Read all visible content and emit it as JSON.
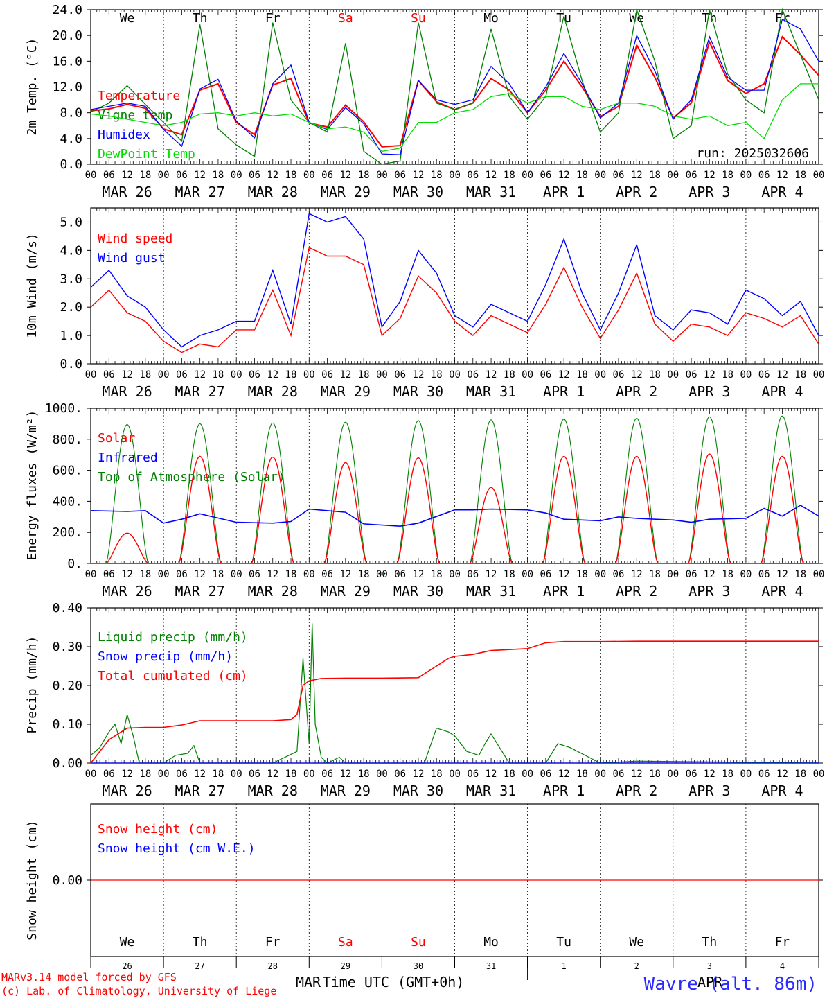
{
  "colors": {
    "red": "#ff0000",
    "blue": "#0000ff",
    "green": "#008000",
    "lightgreen": "#00dd00",
    "axis": "#000000",
    "station": "#2a2aff"
  },
  "x_axis": {
    "hour_ticks": [
      "00",
      "06",
      "12",
      "18"
    ],
    "final_tick": "00",
    "date_labels": [
      "MAR 26",
      "MAR 27",
      "MAR 28",
      "MAR 29",
      "MAR 30",
      "MAR 31",
      "APR  1",
      "APR  2",
      "APR  3",
      "APR  4"
    ],
    "weekdays": [
      "We",
      "Th",
      "Fr",
      "Sa",
      "Su",
      "Mo",
      "Tu",
      "We",
      "Th",
      "Fr"
    ],
    "weekend_flags": [
      false,
      false,
      false,
      true,
      true,
      false,
      false,
      false,
      false,
      false
    ],
    "day_numbers": [
      "26",
      "27",
      "28",
      "29",
      "30",
      "31",
      "1",
      "2",
      "3",
      "4"
    ],
    "month_left": "MAR",
    "month_right": "APR"
  },
  "footer": {
    "model_line1": "MARv3.14 model forced by GFS",
    "model_line2": "(c) Lab. of Climatology, University of Liege",
    "axis_title": "Time UTC (GMT+0h)",
    "station": "Wavre (alt. 86m)"
  },
  "chart_data": [
    {
      "type": "line",
      "ylabel": "2m Temp. (°C)",
      "yticks": [
        "0.0",
        "4.0",
        "8.0",
        "12.0",
        "16.0",
        "20.0",
        "24.0"
      ],
      "ylim": [
        0,
        24
      ],
      "run_label": "run: 2025032606",
      "x_unit": "hours since MAR 26 00 UTC",
      "series": [
        {
          "name": "Temperature",
          "color": "red",
          "x": [
            0,
            6,
            12,
            18,
            24,
            30,
            36,
            42,
            48,
            54,
            60,
            66,
            72,
            78,
            84,
            90,
            96,
            102,
            108,
            114,
            120,
            126,
            132,
            138,
            144,
            150,
            156,
            162,
            168,
            174,
            180,
            186,
            192,
            198,
            204,
            210,
            216,
            222,
            228,
            234,
            240
          ],
          "y": [
            8.3,
            8.6,
            9.3,
            8.7,
            5.5,
            4.6,
            11.5,
            12.5,
            6.5,
            4.6,
            12.3,
            13.3,
            6.4,
            5.8,
            9.2,
            6.6,
            2.7,
            2.9,
            13.0,
            9.7,
            8.5,
            9.5,
            13.3,
            11.5,
            8.0,
            11.5,
            16.0,
            12.0,
            7.4,
            9.0,
            18.5,
            13.5,
            7.2,
            9.5,
            19.0,
            13.0,
            11.0,
            12.5,
            19.8,
            17.0,
            13.8
          ]
        },
        {
          "name": "Vigne temp",
          "color": "green",
          "x": [
            0,
            6,
            12,
            18,
            24,
            30,
            36,
            42,
            48,
            54,
            60,
            66,
            72,
            78,
            84,
            90,
            96,
            102,
            108,
            114,
            120,
            126,
            132,
            138,
            144,
            150,
            156,
            162,
            168,
            174,
            180,
            186,
            192,
            198,
            204,
            210,
            216,
            222,
            228,
            234,
            240
          ],
          "y": [
            8.1,
            9.5,
            12.2,
            9.3,
            6.5,
            3.6,
            21.7,
            5.5,
            3.0,
            1.2,
            22.0,
            10.0,
            6.5,
            5.0,
            18.8,
            2.0,
            0.0,
            0.5,
            22.0,
            9.5,
            8.5,
            9.5,
            21.0,
            10.5,
            7.0,
            10.5,
            23.0,
            13.0,
            5.0,
            8.0,
            24.0,
            16.0,
            4.0,
            6.0,
            24.0,
            14.0,
            10.0,
            8.0,
            24.0,
            17.0,
            10.0
          ]
        },
        {
          "name": "Humidex",
          "color": "blue",
          "x": [
            0,
            6,
            12,
            18,
            24,
            30,
            36,
            42,
            48,
            54,
            60,
            66,
            72,
            78,
            84,
            90,
            96,
            102,
            108,
            114,
            120,
            126,
            132,
            138,
            144,
            150,
            156,
            162,
            168,
            174,
            180,
            186,
            192,
            198,
            204,
            210,
            216,
            222,
            228,
            234,
            240
          ],
          "y": [
            8.5,
            9.0,
            9.5,
            9.0,
            5.4,
            2.8,
            11.7,
            13.2,
            6.7,
            4.1,
            12.5,
            15.4,
            6.5,
            5.4,
            8.8,
            6.3,
            1.6,
            1.5,
            13.0,
            10.0,
            9.3,
            10.0,
            15.2,
            12.5,
            8.0,
            12.0,
            17.2,
            12.5,
            7.2,
            9.5,
            20.0,
            14.5,
            7.0,
            10.0,
            19.8,
            13.5,
            11.5,
            11.5,
            22.5,
            21.0,
            16.0
          ]
        },
        {
          "name": "DewPoint Temp",
          "color": "lightgreen",
          "x": [
            0,
            6,
            12,
            18,
            24,
            30,
            36,
            42,
            48,
            54,
            60,
            66,
            72,
            78,
            84,
            90,
            96,
            102,
            108,
            114,
            120,
            126,
            132,
            138,
            144,
            150,
            156,
            162,
            168,
            174,
            180,
            186,
            192,
            198,
            204,
            210,
            216,
            222,
            228,
            234,
            240
          ],
          "y": [
            7.8,
            7.5,
            7.0,
            6.5,
            6.0,
            6.5,
            7.8,
            8.0,
            7.5,
            8.0,
            7.5,
            7.8,
            6.5,
            5.5,
            5.8,
            5.0,
            2.0,
            2.5,
            6.5,
            6.5,
            8.0,
            8.5,
            10.5,
            11.0,
            9.5,
            10.5,
            10.5,
            9.0,
            8.5,
            9.5,
            9.5,
            9.0,
            7.5,
            7.0,
            7.5,
            6.0,
            6.5,
            4.0,
            10.0,
            12.5,
            12.5
          ]
        }
      ]
    },
    {
      "type": "line",
      "ylabel": "10m Wind (m/s)",
      "yticks": [
        "0.0",
        "1.0",
        "2.0",
        "3.0",
        "4.0",
        "5.0"
      ],
      "ylim": [
        0,
        5.5
      ],
      "ref_line": 5.0,
      "series": [
        {
          "name": "Wind speed",
          "color": "red",
          "x": [
            0,
            6,
            12,
            18,
            24,
            30,
            36,
            42,
            48,
            54,
            60,
            66,
            72,
            78,
            84,
            90,
            96,
            102,
            108,
            114,
            120,
            126,
            132,
            138,
            144,
            150,
            156,
            162,
            168,
            174,
            180,
            186,
            192,
            198,
            204,
            210,
            216,
            222,
            228,
            234,
            240
          ],
          "y": [
            2.0,
            2.6,
            1.8,
            1.5,
            0.8,
            0.4,
            0.7,
            0.6,
            1.2,
            1.2,
            2.6,
            1.0,
            4.1,
            3.8,
            3.8,
            3.5,
            1.0,
            1.6,
            3.1,
            2.5,
            1.5,
            1.0,
            1.7,
            1.4,
            1.1,
            2.1,
            3.4,
            2.0,
            0.9,
            1.9,
            3.2,
            1.4,
            0.8,
            1.4,
            1.3,
            1.0,
            1.8,
            1.6,
            1.3,
            1.7,
            0.7
          ]
        },
        {
          "name": "Wind gust",
          "color": "blue",
          "x": [
            0,
            6,
            12,
            18,
            24,
            30,
            36,
            42,
            48,
            54,
            60,
            66,
            72,
            78,
            84,
            90,
            96,
            102,
            108,
            114,
            120,
            126,
            132,
            138,
            144,
            150,
            156,
            162,
            168,
            174,
            180,
            186,
            192,
            198,
            204,
            210,
            216,
            222,
            228,
            234,
            240
          ],
          "y": [
            2.7,
            3.3,
            2.4,
            2.0,
            1.2,
            0.6,
            1.0,
            1.2,
            1.5,
            1.5,
            3.3,
            1.4,
            5.3,
            5.0,
            5.2,
            4.4,
            1.3,
            2.2,
            4.0,
            3.2,
            1.7,
            1.3,
            2.1,
            1.8,
            1.5,
            2.8,
            4.4,
            2.5,
            1.2,
            2.5,
            4.2,
            1.7,
            1.2,
            1.9,
            1.8,
            1.4,
            2.6,
            2.3,
            1.7,
            2.2,
            1.0
          ]
        }
      ]
    },
    {
      "type": "line",
      "ylabel": "Energy fluxes (W/m²)",
      "yticks": [
        "0.",
        "200.",
        "400.",
        "600.",
        "800.",
        "1000."
      ],
      "ylim": [
        0,
        1000
      ],
      "daylight": {
        "rise_hour": 5,
        "set_hour": 19,
        "peak_hour": 12
      },
      "series": [
        {
          "name": "Solar",
          "color": "red",
          "daily_peak": [
            195,
            690,
            685,
            650,
            680,
            490,
            690,
            690,
            705,
            690
          ]
        },
        {
          "name": "Infrared",
          "color": "blue",
          "x": [
            0,
            12,
            18,
            24,
            30,
            36,
            48,
            60,
            66,
            72,
            84,
            90,
            102,
            108,
            120,
            126,
            132,
            144,
            150,
            156,
            168,
            174,
            180,
            192,
            198,
            204,
            216,
            222,
            228,
            234,
            240
          ],
          "y": [
            340,
            335,
            340,
            260,
            285,
            320,
            265,
            260,
            270,
            350,
            330,
            255,
            240,
            260,
            345,
            345,
            350,
            345,
            325,
            285,
            275,
            300,
            290,
            280,
            265,
            285,
            290,
            355,
            305,
            375,
            305
          ]
        },
        {
          "name": "Top of Atmosphere (Solar)",
          "color": "green",
          "daily_peak": [
            895,
            900,
            905,
            910,
            920,
            925,
            930,
            935,
            945,
            950
          ]
        }
      ]
    },
    {
      "type": "line",
      "ylabel": "Precip (mm/h)",
      "yticks": [
        "0.00",
        "0.10",
        "0.20",
        "0.30",
        "0.40"
      ],
      "ylim": [
        0,
        0.4
      ],
      "series": [
        {
          "name": "Liquid precip (mm/h)",
          "color": "green",
          "x": [
            0,
            3,
            6,
            8,
            10,
            12,
            14,
            16,
            24,
            28,
            32,
            34,
            36,
            48,
            60,
            68,
            70,
            72,
            73,
            74,
            76,
            78,
            82,
            84,
            96,
            110,
            114,
            118,
            120,
            124,
            128,
            130,
            132,
            138,
            150,
            154,
            158,
            168,
            180,
            240
          ],
          "y": [
            0.02,
            0.04,
            0.08,
            0.1,
            0.05,
            0.125,
            0.07,
            0.0,
            0.0,
            0.02,
            0.025,
            0.045,
            0.0,
            0.0,
            0.0,
            0.03,
            0.27,
            0.05,
            0.36,
            0.1,
            0.015,
            0.0,
            0.015,
            0.0,
            0.0,
            0.0,
            0.09,
            0.08,
            0.07,
            0.03,
            0.02,
            0.05,
            0.075,
            0.0,
            0.0,
            0.05,
            0.04,
            0.0,
            0.005,
            0.0
          ]
        },
        {
          "name": "Snow precip (mm/h)",
          "color": "blue",
          "x": [
            0,
            240
          ],
          "y": [
            0,
            0
          ]
        },
        {
          "name": "Total cumulated (cm)",
          "color": "red",
          "x": [
            0,
            6,
            12,
            18,
            24,
            30,
            36,
            48,
            60,
            66,
            68,
            70,
            72,
            76,
            84,
            96,
            108,
            114,
            118,
            120,
            126,
            132,
            144,
            150,
            156,
            168,
            180,
            192,
            240
          ],
          "y": [
            0.0,
            0.06,
            0.09,
            0.092,
            0.092,
            0.098,
            0.109,
            0.109,
            0.109,
            0.112,
            0.125,
            0.2,
            0.212,
            0.218,
            0.219,
            0.219,
            0.22,
            0.25,
            0.27,
            0.275,
            0.28,
            0.29,
            0.295,
            0.31,
            0.313,
            0.313,
            0.314,
            0.314,
            0.314
          ]
        }
      ]
    },
    {
      "type": "line",
      "ylabel": "Snow height (cm)",
      "yticks": [
        "0.00"
      ],
      "ylim": [
        -1,
        1
      ],
      "series": [
        {
          "name": "Snow height (cm)",
          "color": "red",
          "x": [
            0,
            240
          ],
          "y": [
            0,
            0
          ]
        },
        {
          "name": "Snow height (cm W.E.)",
          "color": "blue"
        }
      ]
    }
  ]
}
